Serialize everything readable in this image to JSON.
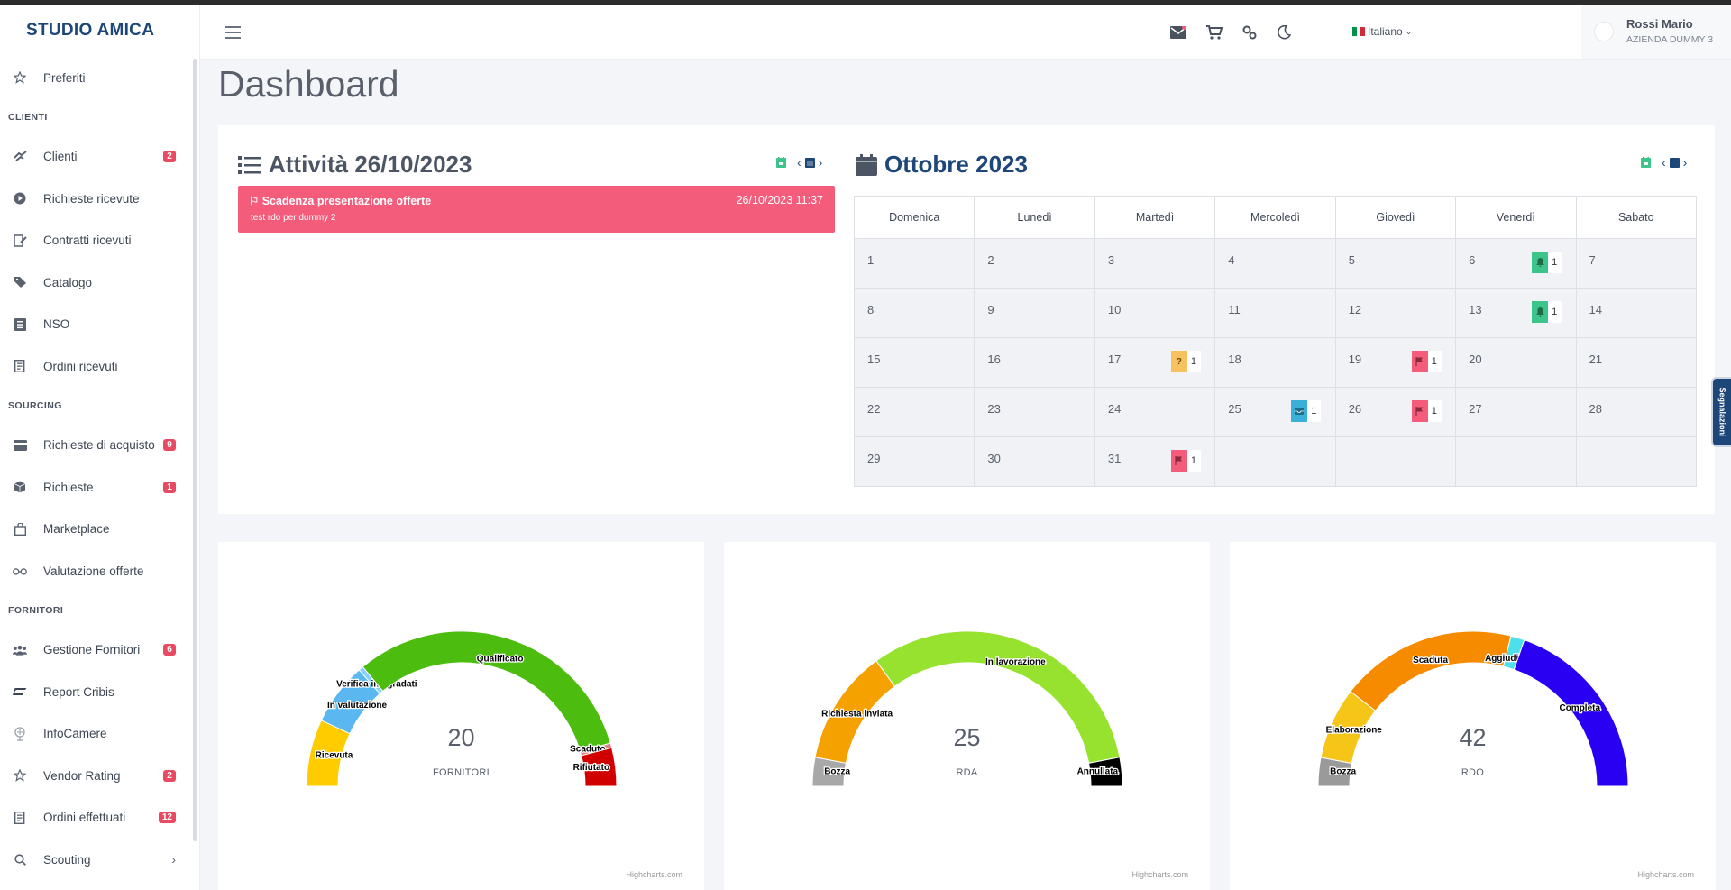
{
  "brand": "STUDIO AMICA",
  "sidebar": {
    "favorites": {
      "label": "Preferiti",
      "icon": "star-icon"
    },
    "sections": [
      {
        "heading": "CLIENTI",
        "items": [
          {
            "label": "Clienti",
            "icon": "handshake-icon",
            "badge": "2"
          },
          {
            "label": "Richieste ricevute",
            "icon": "play-circle-icon",
            "badge": ""
          },
          {
            "label": "Contratti ricevuti",
            "icon": "edit-document-icon",
            "badge": ""
          },
          {
            "label": "Catalogo",
            "icon": "tags-icon",
            "badge": ""
          },
          {
            "label": "NSO",
            "icon": "list-box-icon",
            "badge": ""
          },
          {
            "label": "Ordini ricevuti",
            "icon": "receipt-icon",
            "badge": ""
          }
        ]
      },
      {
        "heading": "SOURCING",
        "items": [
          {
            "label": "Richieste di acquisto",
            "icon": "credit-card-icon",
            "badge": "9"
          },
          {
            "label": "Richieste",
            "icon": "cube-icon",
            "badge": "1"
          },
          {
            "label": "Marketplace",
            "icon": "shopping-bag-icon",
            "badge": ""
          },
          {
            "label": "Valutazione offerte",
            "icon": "glasses-icon",
            "badge": ""
          }
        ]
      },
      {
        "heading": "FORNITORI",
        "items": [
          {
            "label": "Gestione Fornitori",
            "icon": "users-icon",
            "badge": "6"
          },
          {
            "label": "Report Cribis",
            "icon": "cribis-logo-icon",
            "badge": ""
          },
          {
            "label": "InfoCamere",
            "icon": "infocamere-logo-icon",
            "badge": ""
          },
          {
            "label": "Vendor Rating",
            "icon": "star-icon",
            "badge": "2"
          },
          {
            "label": "Ordini effettuati",
            "icon": "receipt-icon",
            "badge": "12"
          },
          {
            "label": "Scouting",
            "icon": "search-icon",
            "badge": "",
            "chevron": "›"
          }
        ]
      }
    ]
  },
  "header": {
    "language": "Italiano",
    "user_name": "Rossi Mario",
    "user_org": "AZIENDA DUMMY 3"
  },
  "page_title": "Dashboard",
  "activities": {
    "title": "Attività 26/10/2023",
    "events": [
      {
        "title": "Scadenza presentazione offerte",
        "date": "26/10/2023 11:37",
        "subtitle": "test rdo per dummy 2"
      }
    ]
  },
  "calendar": {
    "title": "Ottobre 2023",
    "weekdays": [
      "Domenica",
      "Lunedì",
      "Martedì",
      "Mercoledì",
      "Giovedì",
      "Venerdì",
      "Sabato"
    ],
    "weeks": [
      [
        "1",
        "2",
        "3",
        "4",
        "5",
        "6",
        "7"
      ],
      [
        "8",
        "9",
        "10",
        "11",
        "12",
        "13",
        "14"
      ],
      [
        "15",
        "16",
        "17",
        "18",
        "19",
        "20",
        "21"
      ],
      [
        "22",
        "23",
        "24",
        "25",
        "26",
        "27",
        "28"
      ],
      [
        "29",
        "30",
        "31",
        "",
        "",
        "",
        ""
      ]
    ],
    "events": [
      {
        "week": 0,
        "day": 5,
        "color": "#3cc48a",
        "glyph": "bell",
        "count": "1"
      },
      {
        "week": 1,
        "day": 5,
        "color": "#3cc48a",
        "glyph": "bell",
        "count": "1"
      },
      {
        "week": 2,
        "day": 2,
        "color": "#f7c15f",
        "glyph": "?",
        "count": "1"
      },
      {
        "week": 2,
        "day": 4,
        "color": "#f35c7b",
        "glyph": "flag",
        "count": "1"
      },
      {
        "week": 3,
        "day": 3,
        "color": "#3ab0d8",
        "glyph": "inbox",
        "count": "1"
      },
      {
        "week": 3,
        "day": 4,
        "color": "#f35c7b",
        "glyph": "flag",
        "count": "1"
      },
      {
        "week": 4,
        "day": 2,
        "color": "#f35c7b",
        "glyph": "flag",
        "count": "1"
      }
    ]
  },
  "chart_data": [
    {
      "type": "pie",
      "total": "20",
      "center_label": "FORNITORI",
      "credit": "Highcharts.com",
      "segments": [
        {
          "name": "Ricevuta",
          "value": 2.8,
          "color": "#ffcc00"
        },
        {
          "name": "In valutazione",
          "value": 2.6,
          "color": "#5ab7f0"
        },
        {
          "name": "Verifica integradati",
          "value": 0.2,
          "color": "#8ad0ff"
        },
        {
          "name": "Qualificato",
          "value": 12.6,
          "color": "#4cbc0f"
        },
        {
          "name": "Scaduto",
          "value": 0.2,
          "color": "#e08080"
        },
        {
          "name": "Rifiutato",
          "value": 1.6,
          "color": "#d00000"
        }
      ]
    },
    {
      "type": "pie",
      "total": "25",
      "center_label": "RDA",
      "credit": "Highcharts.com",
      "segments": [
        {
          "name": "Bozza",
          "value": 1.5,
          "color": "#a8a8a8"
        },
        {
          "name": "Richiesta inviata",
          "value": 6.0,
          "color": "#f5a100"
        },
        {
          "name": "In lavorazione",
          "value": 16.0,
          "color": "#97e22e"
        },
        {
          "name": "Annullata",
          "value": 1.5,
          "color": "#000000"
        }
      ]
    },
    {
      "type": "pie",
      "total": "42",
      "center_label": "RDO",
      "credit": "Highcharts.com",
      "segments": [
        {
          "name": "Bozza",
          "value": 2.5,
          "color": "#9a9a9a"
        },
        {
          "name": "Elaborazione",
          "value": 6.3,
          "color": "#f5c518"
        },
        {
          "name": "Scaduta",
          "value": 15.5,
          "color": "#f68b00"
        },
        {
          "name": "Aggiudicata",
          "value": 1.2,
          "color": "#4fdfea"
        },
        {
          "name": "Completa",
          "value": 16.5,
          "color": "#2a00f2"
        }
      ]
    }
  ],
  "side_tab": "Segnalazioni"
}
